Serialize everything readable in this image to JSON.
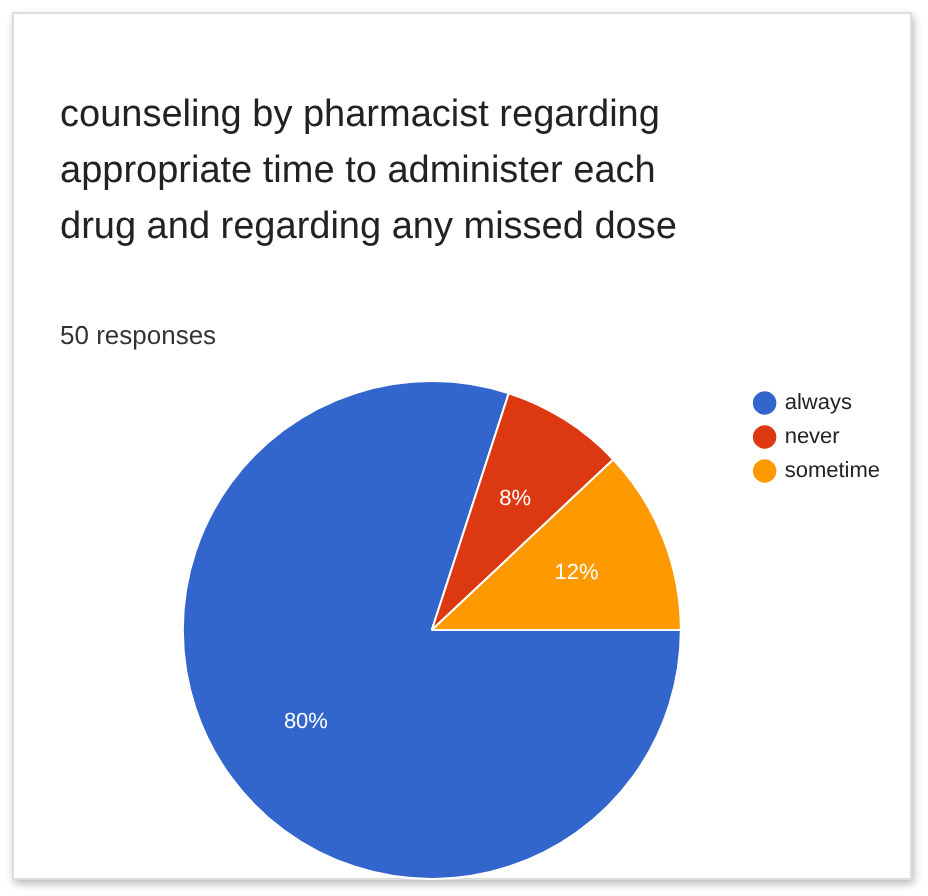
{
  "chart_data": {
    "type": "pie",
    "title": "counseling by pharmacist regarding appropriate time to administer each drug and regarding any missed dose",
    "subtitle": "50 responses",
    "categories": [
      "always",
      "never",
      "sometime"
    ],
    "values": [
      80,
      8,
      12
    ],
    "colors": [
      "#3366cc",
      "#dc3912",
      "#ff9900"
    ],
    "value_labels": [
      "80%",
      "8%",
      "12%"
    ],
    "legend": "right"
  }
}
